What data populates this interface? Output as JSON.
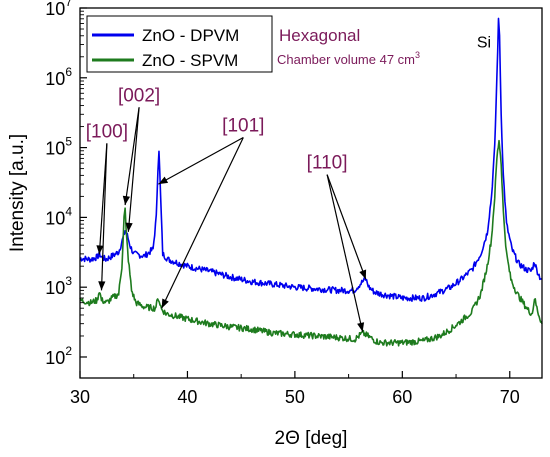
{
  "chart_data": {
    "type": "line",
    "title": "",
    "xlabel": "2Θ [deg]",
    "ylabel": "Intensity [a.u.]",
    "xlim": [
      30,
      73
    ],
    "ylim": [
      50,
      10000000
    ],
    "y_scale": "log",
    "x_ticks": [
      30,
      40,
      50,
      60,
      70
    ],
    "x_tick_labels": [
      "30",
      "40",
      "50",
      "60",
      "70"
    ],
    "y_ticks": [
      100,
      1000,
      10000,
      100000,
      1000000,
      10000000
    ],
    "y_tick_labels": [
      {
        "base": "10",
        "exp": "2"
      },
      {
        "base": "10",
        "exp": "3"
      },
      {
        "base": "10",
        "exp": "4"
      },
      {
        "base": "10",
        "exp": "5"
      },
      {
        "base": "10",
        "exp": "6"
      },
      {
        "base": "10",
        "exp": "7"
      }
    ],
    "legend_position": "top-left",
    "grid": false,
    "series": [
      {
        "name": "ZnO - DPVM",
        "color": "#0000ee",
        "x": [
          30,
          31,
          31.6,
          31.8,
          32,
          32.4,
          33,
          33.6,
          34.0,
          34.2,
          34.4,
          34.7,
          35,
          36,
          36.8,
          37.1,
          37.25,
          37.35,
          37.5,
          37.7,
          38.2,
          40,
          42,
          44,
          46,
          48,
          50,
          52,
          54,
          55.5,
          56.3,
          56.6,
          56.9,
          57.4,
          58,
          60,
          62,
          63.5,
          64.5,
          65.5,
          66.5,
          67.3,
          67.9,
          68.3,
          68.6,
          68.8,
          68.95,
          69.05,
          69.2,
          69.4,
          69.7,
          70.2,
          70.8,
          71.5,
          72.0,
          72.3,
          72.5,
          72.8,
          73
        ],
        "y": [
          2600,
          2500,
          2700,
          3000,
          2700,
          2500,
          2800,
          3200,
          5000,
          6500,
          5500,
          3800,
          3000,
          2800,
          3500,
          10000,
          50000,
          95000,
          20000,
          3000,
          2500,
          2000,
          1700,
          1400,
          1200,
          1100,
          1000,
          950,
          900,
          900,
          1200,
          1300,
          1000,
          850,
          800,
          700,
          700,
          850,
          1000,
          1300,
          1800,
          3000,
          6000,
          20000,
          100000,
          1000000,
          6500000,
          4000000,
          300000,
          40000,
          8000,
          3500,
          2200,
          1800,
          1700,
          2300,
          1800,
          1400,
          1300
        ]
      },
      {
        "name": "ZnO - SPVM",
        "color": "#1e7b1e",
        "x": [
          30,
          31,
          31.6,
          31.8,
          32,
          32.5,
          33,
          33.6,
          33.9,
          34.1,
          34.2,
          34.3,
          34.5,
          34.8,
          35.2,
          36,
          37,
          37.3,
          37.6,
          38,
          40,
          42,
          44,
          46,
          48,
          50,
          52,
          54,
          55.6,
          56.3,
          56.8,
          57.5,
          58,
          60,
          62,
          63.5,
          64.5,
          65.5,
          66.5,
          67.3,
          67.9,
          68.3,
          68.6,
          68.8,
          69.0,
          69.2,
          69.4,
          69.7,
          70.1,
          70.7,
          71.4,
          71.8,
          72.1,
          72.3,
          72.6,
          73
        ],
        "y": [
          650,
          600,
          650,
          900,
          650,
          600,
          700,
          800,
          2000,
          10000,
          13000,
          6000,
          2500,
          900,
          600,
          520,
          500,
          700,
          480,
          420,
          350,
          300,
          270,
          250,
          220,
          210,
          200,
          190,
          180,
          220,
          200,
          170,
          160,
          160,
          170,
          200,
          250,
          330,
          450,
          800,
          2000,
          5000,
          20000,
          70000,
          130000,
          60000,
          12000,
          3000,
          1300,
          800,
          550,
          450,
          420,
          700,
          450,
          300
        ]
      }
    ],
    "annotations": [
      {
        "text": "[100]",
        "label_x": 32.5,
        "label_y": 140000,
        "color": "#7b1a5a",
        "targets": [
          [
            31.8,
            2950
          ],
          [
            32.0,
            900
          ]
        ]
      },
      {
        "text": "[002]",
        "label_x": 35.5,
        "label_y": 460000,
        "color": "#7b1a5a",
        "targets": [
          [
            34.2,
            15000
          ],
          [
            34.5,
            6200
          ]
        ]
      },
      {
        "text": "[101]",
        "label_x": 45.2,
        "label_y": 170000,
        "color": "#7b1a5a",
        "targets": [
          [
            37.3,
            30000
          ],
          [
            37.6,
            500
          ]
        ]
      },
      {
        "text": "[110]",
        "label_x": 53,
        "label_y": 50000,
        "color": "#7b1a5a",
        "targets": [
          [
            56.6,
            1300
          ],
          [
            56.3,
            230
          ]
        ]
      },
      {
        "text": "Si",
        "label_x": 67.6,
        "label_y": 2700000,
        "color": "#000000",
        "targets": []
      }
    ],
    "notes": {
      "phase": "Hexagonal",
      "chamber_text": "Chamber volume 47 cm",
      "chamber_exp": "3",
      "color": "#7b1a5a"
    }
  }
}
